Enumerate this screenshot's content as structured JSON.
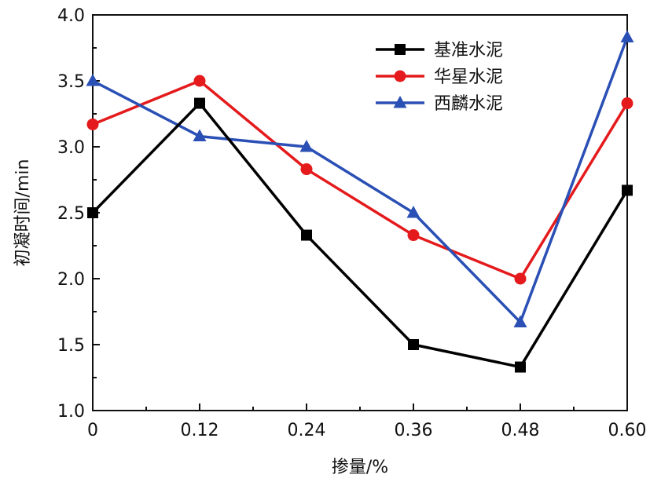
{
  "chart_data": {
    "type": "line",
    "title": "",
    "xlabel": "掺量/%",
    "ylabel": "初凝时间/min",
    "x": [
      0,
      0.12,
      0.24,
      0.36,
      0.48,
      0.6
    ],
    "x_tick_labels": [
      "0",
      "0.12",
      "0.24",
      "0.36",
      "0.48",
      "0.60"
    ],
    "xlim": [
      0,
      0.6
    ],
    "ylim": [
      1.0,
      4.0
    ],
    "y_ticks": [
      1.0,
      1.5,
      2.0,
      2.5,
      3.0,
      3.5,
      4.0
    ],
    "y_tick_labels": [
      "1.0",
      "1.5",
      "2.0",
      "2.5",
      "3.0",
      "3.5",
      "4.0"
    ],
    "grid": false,
    "legend_position": "top-right",
    "series": [
      {
        "name": "基准水泥",
        "color": "#000000",
        "marker": "square",
        "values": [
          2.5,
          3.33,
          2.33,
          1.5,
          1.33,
          2.67
        ]
      },
      {
        "name": "华星水泥",
        "color": "#e41a1c",
        "marker": "circle",
        "values": [
          3.17,
          3.5,
          2.83,
          2.33,
          2.0,
          3.33
        ]
      },
      {
        "name": "西麟水泥",
        "color": "#2a4fb5",
        "marker": "triangle",
        "values": [
          3.5,
          3.08,
          3.0,
          2.5,
          1.67,
          3.83
        ]
      }
    ]
  }
}
